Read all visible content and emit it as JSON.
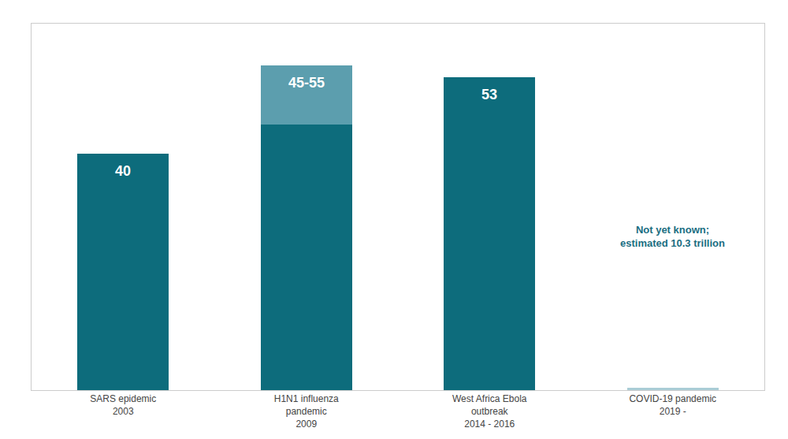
{
  "chart_data": {
    "type": "bar",
    "categories": [
      "SARS epidemic\n2003",
      "H1N1 influenza\npandemic\n2009",
      "West Africa Ebola\noutbreak\n2014 - 2016",
      "COVID-19 pandemic\n2019 -"
    ],
    "series": [
      {
        "values": [
          40,
          45,
          53,
          0.4
        ],
        "colors": [
          "#0d6c7c",
          "#0d6c7c",
          "#0d6c7c",
          "#aacdd6"
        ]
      },
      {
        "values": [
          null,
          10,
          null,
          null
        ],
        "color": "#5c9eae"
      }
    ],
    "stacked": true,
    "ylim": [
      0,
      62
    ],
    "tick_labels": "x",
    "grid": false,
    "annotations": [
      {
        "category": "SARS epidemic\n2003",
        "text": "40",
        "color": "#ffffff"
      },
      {
        "category": "H1N1 influenza\npandemic\n2009",
        "text": "45-55",
        "color": "#ffffff"
      },
      {
        "category": "West Africa Ebola\noutbreak\n2014 - 2016",
        "text": "53",
        "color": "#ffffff"
      },
      {
        "category": "COVID-19 pandemic\n2019 -",
        "text": "Not yet known;\nestimated 10.3 trillion",
        "color": "#1a6e82"
      }
    ]
  }
}
